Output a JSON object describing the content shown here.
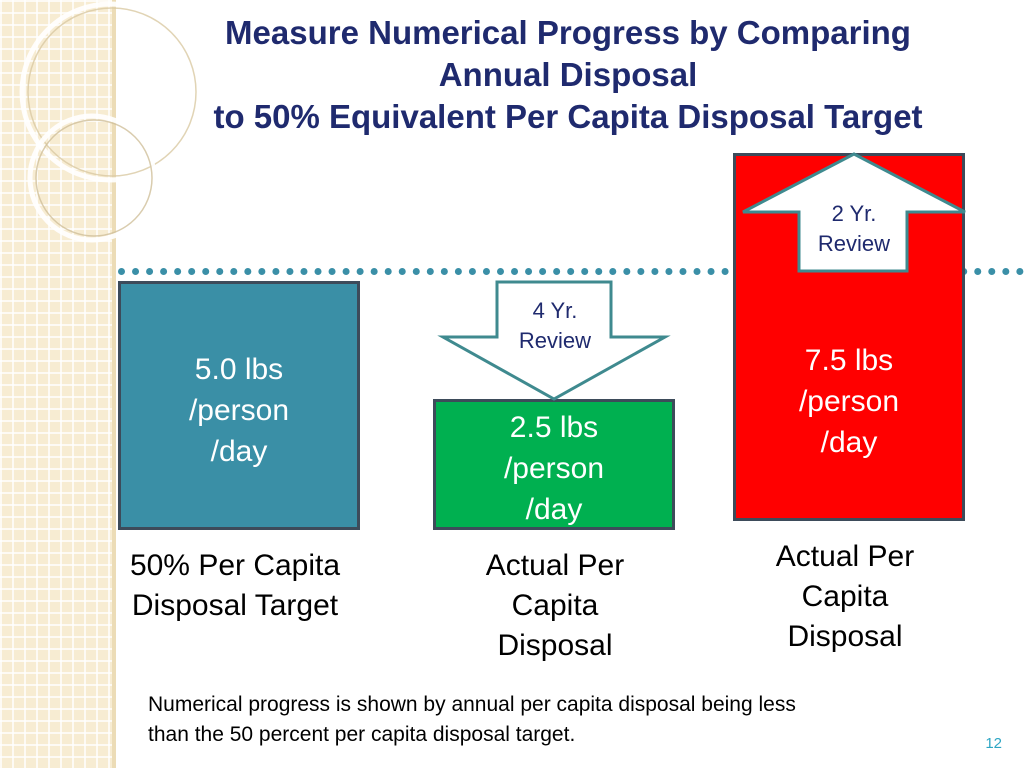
{
  "slide": {
    "title_lines": [
      "Measure Numerical Progress by Comparing",
      "Annual Disposal",
      "to 50% Equivalent Per Capita Disposal Target"
    ],
    "page_number": "12"
  },
  "boxes": {
    "target": {
      "value_lines": [
        "5.0 lbs",
        "/person",
        "/day"
      ],
      "color": "#3a8fa6",
      "label_lines": [
        "50% Per Capita",
        "Disposal Target"
      ]
    },
    "actual_below": {
      "value_lines": [
        "2.5 lbs",
        "/person",
        "/day"
      ],
      "color": "#00b050",
      "label_lines": [
        "Actual Per",
        "Capita",
        "Disposal"
      ]
    },
    "actual_above": {
      "value_lines": [
        "7.5 lbs",
        "/person",
        "/day"
      ],
      "color": "#ff0000",
      "label_lines": [
        "Actual Per",
        "Capita",
        "Disposal"
      ]
    }
  },
  "arrows": {
    "down_review": {
      "lines": [
        "4 Yr.",
        "Review"
      ],
      "direction": "down"
    },
    "up_review": {
      "lines": [
        "2 Yr.",
        "Review"
      ],
      "direction": "up"
    }
  },
  "footnote_lines": [
    "Numerical progress is shown by annual per capita disposal being less",
    "than the 50 percent per capita disposal  target."
  ],
  "colors": {
    "title": "#1f2a6e",
    "dotted_line": "#3a8fa7",
    "arrow_border": "#3f8a8f"
  }
}
